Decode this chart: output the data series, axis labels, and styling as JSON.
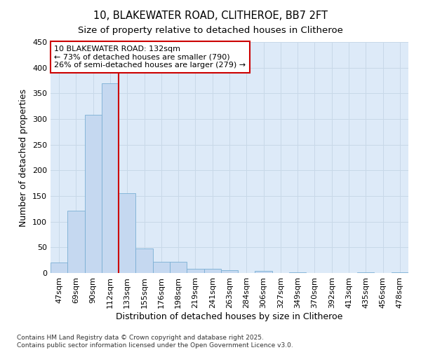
{
  "title": "10, BLAKEWATER ROAD, CLITHEROE, BB7 2FT",
  "subtitle": "Size of property relative to detached houses in Clitheroe",
  "xlabel": "Distribution of detached houses by size in Clitheroe",
  "ylabel": "Number of detached properties",
  "categories": [
    "47sqm",
    "69sqm",
    "90sqm",
    "112sqm",
    "133sqm",
    "155sqm",
    "176sqm",
    "198sqm",
    "219sqm",
    "241sqm",
    "263sqm",
    "284sqm",
    "306sqm",
    "327sqm",
    "349sqm",
    "370sqm",
    "392sqm",
    "413sqm",
    "435sqm",
    "456sqm",
    "478sqm"
  ],
  "values": [
    20,
    122,
    308,
    370,
    155,
    48,
    22,
    22,
    8,
    8,
    5,
    0,
    4,
    0,
    2,
    0,
    0,
    0,
    2,
    0,
    2
  ],
  "bar_color": "#c5d8f0",
  "bar_edge_color": "#7aafd4",
  "vline_color": "#cc0000",
  "annotation_box_color": "#ffffff",
  "annotation_box_edge": "#cc0000",
  "grid_color": "#c8d8e8",
  "bg_color": "#ddeaf8",
  "ylim": [
    0,
    450
  ],
  "yticks": [
    0,
    50,
    100,
    150,
    200,
    250,
    300,
    350,
    400,
    450
  ],
  "marker_label": "10 BLAKEWATER ROAD: 132sqm",
  "annotation_line1": "← 73% of detached houses are smaller (790)",
  "annotation_line2": "26% of semi-detached houses are larger (279) →",
  "footer1": "Contains HM Land Registry data © Crown copyright and database right 2025.",
  "footer2": "Contains public sector information licensed under the Open Government Licence v3.0.",
  "title_fontsize": 10.5,
  "subtitle_fontsize": 9.5,
  "axis_label_fontsize": 9,
  "tick_fontsize": 8,
  "annot_fontsize": 8,
  "footer_fontsize": 6.5
}
